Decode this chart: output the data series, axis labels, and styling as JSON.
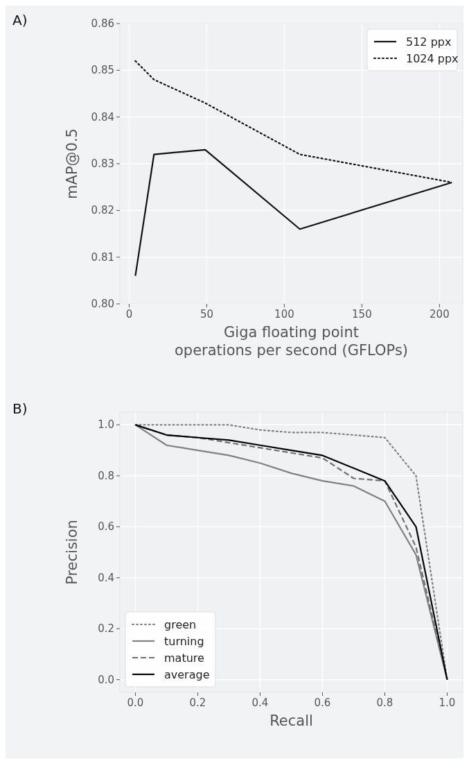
{
  "chart_data": [
    {
      "type": "line",
      "title": "A)",
      "xlabel": "Giga floating point\noperations per second (GFLOPs)",
      "ylabel": "mAP@0.5",
      "x": [
        4,
        16,
        49,
        110,
        208
      ],
      "xlim": [
        -6,
        215
      ],
      "xticks": [
        0,
        50,
        100,
        150,
        200
      ],
      "ylim": [
        0.8,
        0.86
      ],
      "yticks": [
        {
          "value": 0.8,
          "label": "0.80"
        },
        {
          "value": 0.81,
          "label": "0.81"
        },
        {
          "value": 0.82,
          "label": "0.82"
        },
        {
          "value": 0.83,
          "label": "0.83"
        },
        {
          "value": 0.84,
          "label": "0.84"
        },
        {
          "value": 0.85,
          "label": "0.85"
        },
        {
          "value": 0.86,
          "label": "0.86"
        }
      ],
      "grid": true,
      "legend": "top right",
      "series": [
        {
          "name": "512 ppx",
          "color": "#111111",
          "line_style": "solid",
          "values": [
            0.806,
            0.832,
            0.833,
            0.816,
            0.826
          ]
        },
        {
          "name": "1024 ppx",
          "color": "#111111",
          "line_style": "dotted",
          "values": [
            0.852,
            0.848,
            0.843,
            0.832,
            0.826
          ]
        }
      ]
    },
    {
      "type": "line",
      "title": "B)",
      "xlabel": "Recall",
      "ylabel": "Precision",
      "x": [
        0,
        0.1,
        0.2,
        0.3,
        0.4,
        0.5,
        0.6,
        0.7,
        0.8,
        0.9,
        1.0
      ],
      "xlim": [
        -0.05,
        1.05
      ],
      "xticks": [
        {
          "value": 0,
          "label": "0.0"
        },
        {
          "value": 0.2,
          "label": "0.2"
        },
        {
          "value": 0.4,
          "label": "0.4"
        },
        {
          "value": 0.6,
          "label": "0.6"
        },
        {
          "value": 0.8,
          "label": "0.8"
        },
        {
          "value": 1,
          "label": "1.0"
        }
      ],
      "ylim": [
        -0.05,
        1.05
      ],
      "yticks": [
        {
          "value": 0,
          "label": "0.0"
        },
        {
          "value": 0.2,
          "label": "0.2"
        },
        {
          "value": 0.4,
          "label": "0.4"
        },
        {
          "value": 0.6,
          "label": "0.6"
        },
        {
          "value": 0.8,
          "label": "0.8"
        },
        {
          "value": 1,
          "label": "1.0"
        }
      ],
      "grid": true,
      "legend": "bottom left",
      "series": [
        {
          "name": "green",
          "color": "#808080",
          "line_style": "dotted",
          "values": [
            1,
            1,
            1,
            1,
            0.98,
            0.97,
            0.97,
            0.96,
            0.95,
            0.8,
            0
          ]
        },
        {
          "name": "turning",
          "color": "#808080",
          "line_style": "solid",
          "values": [
            1,
            0.92,
            0.9,
            0.88,
            0.85,
            0.81,
            0.78,
            0.76,
            0.7,
            0.49,
            0
          ]
        },
        {
          "name": "mature",
          "color": "#707070",
          "line_style": "dashed",
          "values": [
            1,
            0.96,
            0.95,
            0.93,
            0.91,
            0.89,
            0.87,
            0.79,
            0.78,
            0.52,
            0
          ]
        },
        {
          "name": "average",
          "color": "#000000",
          "line_style": "solid",
          "values": [
            1,
            0.96,
            0.95,
            0.94,
            0.92,
            0.9,
            0.88,
            0.83,
            0.78,
            0.6,
            0
          ]
        }
      ]
    }
  ]
}
